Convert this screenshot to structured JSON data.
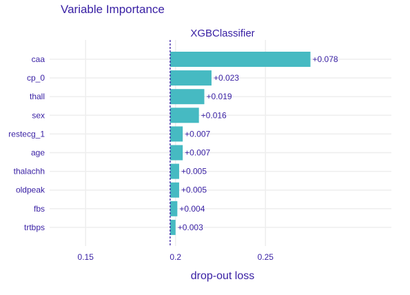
{
  "chart_data": {
    "type": "bar",
    "orientation": "horizontal",
    "title": "Variable Importance",
    "subtitle": "XGBClassifier",
    "xlabel": "drop-out loss",
    "xlim": [
      0.13,
      0.32
    ],
    "xticks": [
      0.15,
      0.2,
      0.25
    ],
    "xtick_labels": [
      "0.15",
      "0.2",
      "0.25"
    ],
    "baseline": 0.197,
    "categories": [
      "caa",
      "cp_0",
      "thall",
      "sex",
      "restecg_1",
      "age",
      "thalachh",
      "oldpeak",
      "fbs",
      "trtbps"
    ],
    "values": [
      0.078,
      0.023,
      0.019,
      0.016,
      0.007,
      0.007,
      0.005,
      0.005,
      0.004,
      0.003
    ],
    "value_labels": [
      "+0.078",
      "+0.023",
      "+0.019",
      "+0.016",
      "+0.007",
      "+0.007",
      "+0.005",
      "+0.005",
      "+0.004",
      "+0.003"
    ],
    "bar_color": "#46bac2",
    "baseline_color": "#371ea3",
    "grid": true,
    "legend": "none"
  }
}
